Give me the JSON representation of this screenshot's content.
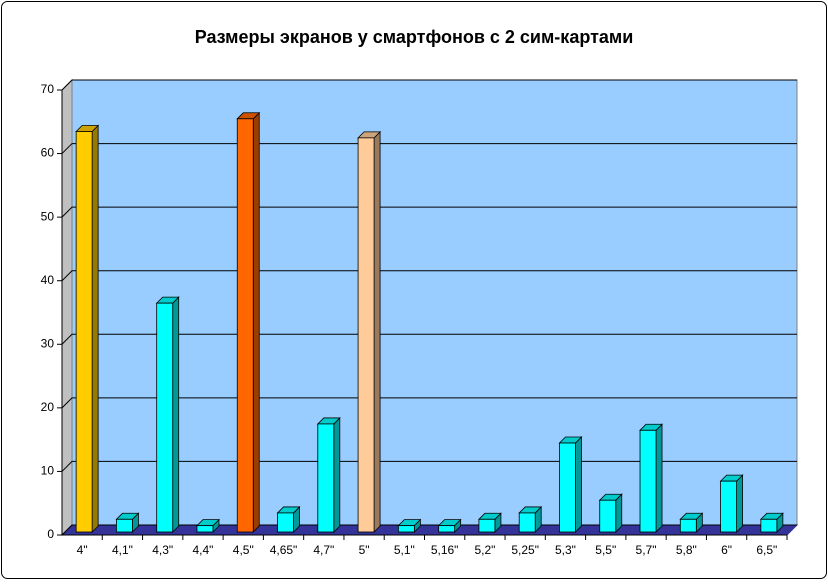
{
  "chart_data": {
    "type": "bar",
    "title": "Размеры экранов у смартфонов с 2 сим-картами",
    "categories": [
      "4\"",
      "4,1\"",
      "4,3\"",
      "4,4\"",
      "4,5\"",
      "4,65\"",
      "4,7\"",
      "5\"",
      "5,1\"",
      "5,16\"",
      "5,2\"",
      "5,25\"",
      "5,3\"",
      "5,5\"",
      "5,7\"",
      "5,8\"",
      "6\"",
      "6,5\""
    ],
    "values": [
      63,
      2,
      36,
      1,
      65,
      3,
      17,
      62,
      1,
      1,
      2,
      3,
      14,
      5,
      16,
      2,
      8,
      2
    ],
    "colors": [
      "#ffcc00",
      "#00ffff",
      "#00ffff",
      "#00ffff",
      "#ff6600",
      "#00ffff",
      "#00ffff",
      "#ffcc99",
      "#00ffff",
      "#00ffff",
      "#00ffff",
      "#00ffff",
      "#00ffff",
      "#00ffff",
      "#00ffff",
      "#00ffff",
      "#00ffff",
      "#00ffff"
    ],
    "ylim": [
      0,
      70
    ],
    "yticks": [
      0,
      10,
      20,
      30,
      40,
      50,
      60,
      70
    ],
    "grid": true
  }
}
